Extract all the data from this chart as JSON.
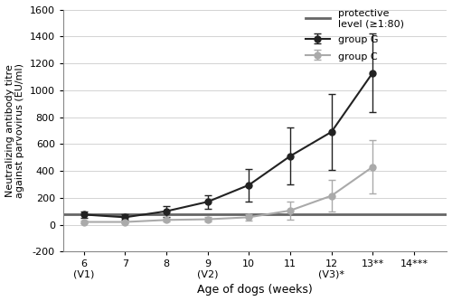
{
  "group_G_x": [
    6,
    7,
    8,
    9,
    10,
    11,
    12,
    13,
    14
  ],
  "group_G_y": [
    75,
    55,
    100,
    170,
    295,
    510,
    690,
    1130,
    null
  ],
  "group_G_yerr_lo": [
    25,
    20,
    40,
    50,
    120,
    210,
    280,
    290,
    null
  ],
  "group_G_yerr_hi": [
    25,
    20,
    40,
    50,
    120,
    210,
    280,
    290,
    null
  ],
  "group_C_x": [
    6,
    7,
    8,
    9,
    10,
    11,
    12,
    13,
    14
  ],
  "group_C_y": [
    20,
    20,
    35,
    40,
    55,
    105,
    215,
    430,
    null
  ],
  "group_C_yerr_lo": [
    10,
    10,
    12,
    15,
    25,
    65,
    120,
    200,
    null
  ],
  "group_C_yerr_hi": [
    10,
    10,
    12,
    15,
    25,
    65,
    120,
    200,
    null
  ],
  "protective_level": 80,
  "color_G": "#222222",
  "color_C": "#aaaaaa",
  "color_protective": "#666666",
  "ylim": [
    -200,
    1600
  ],
  "yticks": [
    -200,
    0,
    200,
    400,
    600,
    800,
    1000,
    1200,
    1400,
    1600
  ],
  "xticks": [
    6,
    7,
    8,
    9,
    10,
    11,
    12,
    13,
    14
  ],
  "xlabel": "Age of dogs (weeks)",
  "ylabel": "Neutralizing antibody titre\nagainst parvovirus (EU/ml)",
  "legend_G": "group G",
  "legend_C": "group C",
  "legend_protective": "protective\nlevel (≥1:80)",
  "xlim": [
    5.5,
    14.8
  ],
  "tick_labels_top": [
    "6",
    "7",
    "8",
    "9",
    "10",
    "11",
    "12",
    "13**",
    "14***"
  ],
  "tick_labels_bottom": [
    "(V1)",
    "",
    "",
    "(V2)",
    "",
    "",
    "(V3)*",
    "",
    ""
  ]
}
